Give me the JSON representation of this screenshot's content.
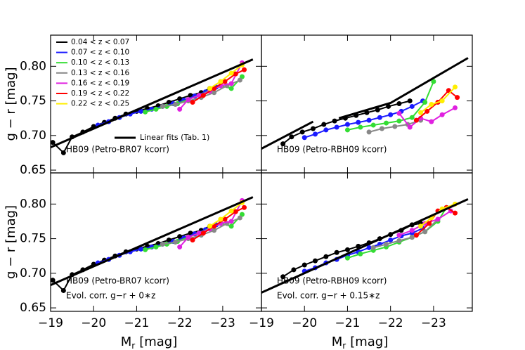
{
  "chart_data": [
    {
      "type": "line",
      "xlim": [
        -19,
        -23.9
      ],
      "ylim": [
        0.646,
        0.845
      ],
      "xticks": [
        -19,
        -20,
        -21,
        -22,
        -23
      ],
      "yticks": [
        {
          "value": 0.65,
          "label": "0.65"
        },
        {
          "value": 0.7,
          "label": "0.70"
        },
        {
          "value": 0.75,
          "label": "0.75"
        },
        {
          "value": 0.8,
          "label": "0.80"
        }
      ],
      "y_label": "g − r [mag]",
      "legend": "upper left",
      "annotations": [
        "HB09 (Petro-BR07 kcorr)"
      ],
      "series": [
        {
          "name": "0.04 < z < 0.07",
          "color": "#000000",
          "marker": "circle",
          "x": [
            -19.05,
            -19.3,
            -19.5,
            -19.75,
            -20.0,
            -20.25,
            -20.5,
            -20.75,
            -21.0,
            -21.25,
            -21.5,
            -21.75,
            -22.0,
            -22.25,
            -22.5,
            -22.7
          ],
          "values": [
            0.69,
            0.675,
            0.698,
            0.705,
            0.713,
            0.719,
            0.725,
            0.731,
            0.735,
            0.739,
            0.743,
            0.748,
            0.753,
            0.758,
            0.762,
            0.768
          ]
        },
        {
          "name": "0.07 < z < 0.10",
          "color": "#1a1aff",
          "marker": "circle",
          "x": [
            -20.1,
            -20.35,
            -20.6,
            -20.85,
            -21.1,
            -21.35,
            -21.6,
            -21.85,
            -22.1,
            -22.35,
            -22.6,
            -22.85
          ],
          "values": [
            0.715,
            0.72,
            0.726,
            0.731,
            0.735,
            0.738,
            0.742,
            0.746,
            0.751,
            0.757,
            0.763,
            0.77
          ]
        },
        {
          "name": "0.10 < z < 0.13",
          "color": "#33dd33",
          "marker": "circle",
          "x": [
            -21.2,
            -21.45,
            -21.7,
            -21.95,
            -22.2,
            -22.45,
            -22.7,
            -22.95,
            -23.2,
            -23.45
          ],
          "values": [
            0.734,
            0.738,
            0.742,
            0.746,
            0.752,
            0.758,
            0.765,
            0.772,
            0.768,
            0.785
          ]
        },
        {
          "name": "0.13 < z < 0.16",
          "color": "#888888",
          "marker": "circle",
          "x": [
            -21.6,
            -21.9,
            -22.2,
            -22.5,
            -22.8,
            -23.1,
            -23.4
          ],
          "values": [
            0.742,
            0.745,
            0.75,
            0.755,
            0.762,
            0.772,
            0.78
          ]
        },
        {
          "name": "0.16 < z < 0.19",
          "color": "#e020e0",
          "marker": "circle",
          "x": [
            -22.0,
            -22.2,
            -22.45,
            -22.7,
            -22.95,
            -23.2,
            -23.45
          ],
          "values": [
            0.738,
            0.752,
            0.758,
            0.764,
            0.772,
            0.775,
            0.805
          ]
        },
        {
          "name": "0.19 < z < 0.22",
          "color": "#ff0000",
          "marker": "circle",
          "x": [
            -22.3,
            -22.55,
            -22.8,
            -23.05,
            -23.3,
            -23.5
          ],
          "values": [
            0.748,
            0.758,
            0.768,
            0.778,
            0.789,
            0.795
          ]
        },
        {
          "name": "0.22 < z < 0.25",
          "color": "#ffee00",
          "marker": "circle",
          "x": [
            -22.7,
            -22.95,
            -23.2,
            -23.45
          ],
          "values": [
            0.768,
            0.778,
            0.79,
            0.802
          ]
        },
        {
          "name": "Linear fits (Tab. 1)",
          "color": "#000000",
          "linewidth": 3,
          "x": [
            -19,
            -23.7
          ],
          "values": [
            0.683,
            0.81
          ]
        }
      ]
    },
    {
      "type": "line",
      "xlim": [
        -19,
        -23.9
      ],
      "ylim": [
        0.646,
        0.845
      ],
      "xticks": [
        -19,
        -20,
        -21,
        -22,
        -23
      ],
      "yticks": [
        0.65,
        0.7,
        0.75,
        0.8
      ],
      "annotations": [
        "HB09 (Petro-RBH09 kcorr)"
      ],
      "series": [
        {
          "color": "#000000",
          "marker": "circle",
          "x": [
            -19.5,
            -19.7,
            -19.95,
            -20.2,
            -20.45,
            -20.7,
            -20.95,
            -21.2,
            -21.45,
            -21.7,
            -21.95,
            -22.2,
            -22.45
          ],
          "values": [
            0.688,
            0.698,
            0.705,
            0.71,
            0.716,
            0.721,
            0.725,
            0.729,
            0.733,
            0.737,
            0.742,
            0.746,
            0.75
          ]
        },
        {
          "color": "#1a1aff",
          "marker": "circle",
          "x": [
            -20.0,
            -20.25,
            -20.5,
            -20.75,
            -21.0,
            -21.25,
            -21.5,
            -21.75,
            -22.0,
            -22.25,
            -22.5,
            -22.75
          ],
          "values": [
            0.697,
            0.702,
            0.708,
            0.712,
            0.716,
            0.719,
            0.722,
            0.726,
            0.73,
            0.735,
            0.742,
            0.75
          ]
        },
        {
          "color": "#33dd33",
          "marker": "circle",
          "x": [
            -21.0,
            -21.3,
            -21.6,
            -21.9,
            -22.2,
            -22.5,
            -22.8,
            -23.0
          ],
          "values": [
            0.708,
            0.712,
            0.715,
            0.718,
            0.721,
            0.726,
            0.748,
            0.778
          ]
        },
        {
          "color": "#888888",
          "marker": "circle",
          "x": [
            -21.5,
            -21.8,
            -22.1,
            -22.4,
            -22.7
          ],
          "values": [
            0.705,
            0.71,
            0.713,
            0.716,
            0.722
          ]
        },
        {
          "color": "#e020e0",
          "marker": "circle",
          "x": [
            -22.2,
            -22.45,
            -22.7,
            -22.95,
            -23.2,
            -23.5
          ],
          "values": [
            0.732,
            0.712,
            0.725,
            0.72,
            0.73,
            0.74
          ]
        },
        {
          "color": "#ff0000",
          "marker": "circle",
          "x": [
            -22.6,
            -22.85,
            -23.1,
            -23.35,
            -23.55
          ],
          "values": [
            0.722,
            0.735,
            0.748,
            0.765,
            0.755
          ]
        },
        {
          "color": "#ffee00",
          "marker": "circle",
          "x": [
            -22.7,
            -22.95,
            -23.2,
            -23.5
          ],
          "values": [
            0.733,
            0.745,
            0.75,
            0.77
          ]
        },
        {
          "color": "#000000",
          "linewidth": 3,
          "x": [
            -19,
            -20.2,
            -20.5,
            -20.8,
            -22.0,
            -23.8
          ],
          "values": [
            0.681,
            0.72,
            null,
            0.725,
            0.747,
            0.812
          ]
        }
      ]
    },
    {
      "type": "line",
      "xlim": [
        -19,
        -23.9
      ],
      "ylim": [
        0.645,
        0.845
      ],
      "xticks": [
        {
          "value": -19,
          "label": "−19"
        },
        {
          "value": -20,
          "label": "−20"
        },
        {
          "value": -21,
          "label": "−21"
        },
        {
          "value": -22,
          "label": "−22"
        },
        {
          "value": -23,
          "label": "−23"
        }
      ],
      "yticks": [
        {
          "value": 0.65,
          "label": "0.65"
        },
        {
          "value": 0.7,
          "label": "0.70"
        },
        {
          "value": 0.75,
          "label": "0.75"
        },
        {
          "value": 0.8,
          "label": "0.80"
        }
      ],
      "y_label": "g − r [mag]",
      "x_label": {
        "main": "M",
        "sub": "r",
        "unit": "[mag]"
      },
      "annotations": [
        "HB09 (Petro-BR07 kcorr)",
        "Evol. corr. g−r + 0∗z"
      ],
      "series": [
        {
          "color": "#000000",
          "marker": "circle",
          "x": [
            -19.05,
            -19.3,
            -19.5,
            -19.75,
            -20.0,
            -20.25,
            -20.5,
            -20.75,
            -21.0,
            -21.25,
            -21.5,
            -21.75,
            -22.0,
            -22.25,
            -22.5,
            -22.7
          ],
          "values": [
            0.69,
            0.675,
            0.698,
            0.705,
            0.713,
            0.719,
            0.725,
            0.731,
            0.735,
            0.739,
            0.743,
            0.748,
            0.753,
            0.758,
            0.762,
            0.768
          ]
        },
        {
          "color": "#1a1aff",
          "marker": "circle",
          "x": [
            -20.1,
            -20.35,
            -20.6,
            -20.85,
            -21.1,
            -21.35,
            -21.6,
            -21.85,
            -22.1,
            -22.35,
            -22.6,
            -22.85
          ],
          "values": [
            0.715,
            0.72,
            0.726,
            0.731,
            0.735,
            0.738,
            0.742,
            0.746,
            0.751,
            0.757,
            0.763,
            0.77
          ]
        },
        {
          "color": "#33dd33",
          "marker": "circle",
          "x": [
            -21.2,
            -21.45,
            -21.7,
            -21.95,
            -22.2,
            -22.45,
            -22.7,
            -22.95,
            -23.2,
            -23.45
          ],
          "values": [
            0.734,
            0.738,
            0.742,
            0.746,
            0.752,
            0.758,
            0.765,
            0.772,
            0.768,
            0.785
          ]
        },
        {
          "color": "#888888",
          "marker": "circle",
          "x": [
            -21.6,
            -21.9,
            -22.2,
            -22.5,
            -22.8,
            -23.1,
            -23.4
          ],
          "values": [
            0.742,
            0.745,
            0.75,
            0.755,
            0.762,
            0.772,
            0.78
          ]
        },
        {
          "color": "#e020e0",
          "marker": "circle",
          "x": [
            -22.0,
            -22.2,
            -22.45,
            -22.7,
            -22.95,
            -23.2,
            -23.45
          ],
          "values": [
            0.738,
            0.752,
            0.758,
            0.764,
            0.772,
            0.775,
            0.805
          ]
        },
        {
          "color": "#ff0000",
          "marker": "circle",
          "x": [
            -22.3,
            -22.55,
            -22.8,
            -23.05,
            -23.3,
            -23.5
          ],
          "values": [
            0.748,
            0.758,
            0.768,
            0.778,
            0.789,
            0.795
          ]
        },
        {
          "color": "#ffee00",
          "marker": "circle",
          "x": [
            -22.7,
            -22.95,
            -23.2,
            -23.45
          ],
          "values": [
            0.768,
            0.778,
            0.79,
            0.802
          ]
        },
        {
          "color": "#000000",
          "linewidth": 3,
          "x": [
            -19,
            -23.7
          ],
          "values": [
            0.683,
            0.81
          ]
        }
      ]
    },
    {
      "type": "line",
      "xlim": [
        -19,
        -23.9
      ],
      "ylim": [
        0.645,
        0.845
      ],
      "xticks": [
        {
          "value": -19,
          "label": "−19"
        },
        {
          "value": -20,
          "label": "−20"
        },
        {
          "value": -21,
          "label": "−21"
        },
        {
          "value": -22,
          "label": "−22"
        },
        {
          "value": -23,
          "label": "−23"
        }
      ],
      "yticks": [
        0.65,
        0.7,
        0.75,
        0.8
      ],
      "x_label": {
        "main": "M",
        "sub": "r",
        "unit": "[mag]"
      },
      "annotations": [
        "HB09 (Petro-RBH09 kcorr)",
        "Evol. corr. g−r + 0.15∗z"
      ],
      "series": [
        {
          "color": "#000000",
          "marker": "circle",
          "x": [
            -19.5,
            -19.75,
            -20.0,
            -20.25,
            -20.5,
            -20.75,
            -21.0,
            -21.25,
            -21.5,
            -21.75,
            -22.0,
            -22.25,
            -22.5,
            -22.7
          ],
          "values": [
            0.695,
            0.705,
            0.712,
            0.718,
            0.724,
            0.73,
            0.734,
            0.739,
            0.744,
            0.75,
            0.756,
            0.762,
            0.77,
            0.772
          ]
        },
        {
          "color": "#1a1aff",
          "marker": "circle",
          "x": [
            -20.0,
            -20.25,
            -20.5,
            -20.75,
            -21.0,
            -21.25,
            -21.5,
            -21.75,
            -22.0,
            -22.25,
            -22.5,
            -22.75
          ],
          "values": [
            0.703,
            0.708,
            0.715,
            0.72,
            0.726,
            0.731,
            0.737,
            0.742,
            0.748,
            0.754,
            0.758,
            0.765
          ]
        },
        {
          "color": "#33dd33",
          "marker": "circle",
          "x": [
            -21.0,
            -21.3,
            -21.6,
            -21.9,
            -22.2,
            -22.5,
            -22.8,
            -23.1,
            -23.3
          ],
          "values": [
            0.722,
            0.728,
            0.733,
            0.738,
            0.745,
            0.752,
            0.76,
            0.775,
            0.795
          ]
        },
        {
          "color": "#888888",
          "marker": "circle",
          "x": [
            -21.6,
            -21.9,
            -22.2,
            -22.5,
            -22.8,
            -23.1
          ],
          "values": [
            0.737,
            0.742,
            0.747,
            0.752,
            0.76,
            0.778
          ]
        },
        {
          "color": "#e020e0",
          "marker": "circle",
          "x": [
            -22.2,
            -22.5,
            -22.8,
            -23.1,
            -23.4
          ],
          "values": [
            0.755,
            0.762,
            0.772,
            0.778,
            0.79
          ]
        },
        {
          "color": "#ff0000",
          "marker": "circle",
          "x": [
            -22.6,
            -22.9,
            -23.1,
            -23.3,
            -23.5
          ],
          "values": [
            0.755,
            0.772,
            0.79,
            0.795,
            0.787
          ]
        },
        {
          "color": "#ffee00",
          "marker": "circle",
          "x": [
            -22.7,
            -22.95,
            -23.2,
            -23.5
          ],
          "values": [
            0.768,
            0.78,
            0.793,
            0.8
          ]
        },
        {
          "color": "#000000",
          "linewidth": 3,
          "x": [
            -19,
            -23.8
          ],
          "values": [
            0.672,
            0.807
          ]
        }
      ]
    }
  ]
}
